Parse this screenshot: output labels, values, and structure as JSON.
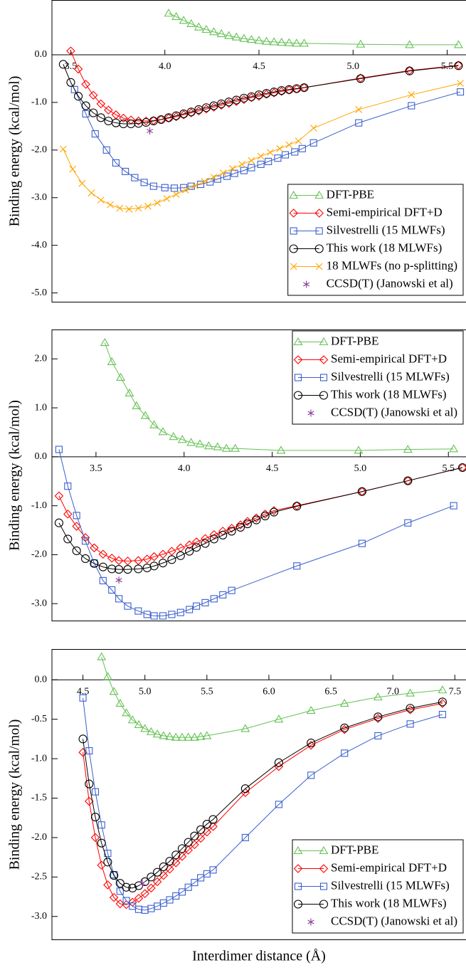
{
  "chart_data": [
    {
      "type": "line",
      "ylabel": "Binding energy (kcal/mol)",
      "xlim": [
        3.4,
        5.6
      ],
      "ylim": [
        -5.2,
        1.15
      ],
      "xticks": [
        3.5,
        {
          "value": 4,
          "label": "4.0"
        },
        4.5,
        {
          "value": 5,
          "label": "5.0"
        },
        5.5
      ],
      "yticks": [
        {
          "value": -5,
          "label": "-5.0"
        },
        {
          "value": -4,
          "label": "-4.0"
        },
        {
          "value": -3,
          "label": "-3.0"
        },
        {
          "value": -2,
          "label": "-2.0"
        },
        {
          "value": -1,
          "label": "-1.0"
        },
        {
          "value": 0,
          "label": "0.0"
        }
      ],
      "legend": "lower right",
      "series": [
        {
          "name": "DFT-PBE",
          "color": "#66c255",
          "marker": "triangle",
          "x": [
            4.02,
            4.06,
            4.1,
            4.14,
            4.18,
            4.22,
            4.26,
            4.3,
            4.34,
            4.38,
            4.42,
            4.46,
            4.5,
            4.54,
            4.58,
            4.62,
            4.66,
            4.7,
            4.74,
            5.04,
            5.3,
            5.56
          ],
          "values": [
            0.87,
            0.8,
            0.72,
            0.65,
            0.58,
            0.53,
            0.48,
            0.44,
            0.4,
            0.37,
            0.34,
            0.32,
            0.3,
            0.28,
            0.27,
            0.26,
            0.25,
            0.24,
            0.24,
            0.22,
            0.21,
            0.21
          ]
        },
        {
          "name": "Semi-empirical DFT+D",
          "color": "#ff0000",
          "marker": "diamond",
          "x": [
            3.5,
            3.54,
            3.58,
            3.62,
            3.66,
            3.7,
            3.74,
            3.78,
            3.82,
            3.86,
            3.9,
            3.94,
            3.98,
            4.02,
            4.06,
            4.1,
            4.14,
            4.18,
            4.22,
            4.26,
            4.3,
            4.34,
            4.38,
            4.42,
            4.46,
            4.5,
            4.54,
            4.58,
            4.62,
            4.66,
            4.7,
            4.74,
            5.04,
            5.3,
            5.56
          ],
          "values": [
            0.08,
            -0.3,
            -0.62,
            -0.85,
            -1.03,
            -1.16,
            -1.26,
            -1.33,
            -1.37,
            -1.39,
            -1.39,
            -1.38,
            -1.36,
            -1.33,
            -1.3,
            -1.26,
            -1.22,
            -1.18,
            -1.14,
            -1.1,
            -1.06,
            -1.02,
            -0.98,
            -0.94,
            -0.9,
            -0.87,
            -0.83,
            -0.8,
            -0.77,
            -0.74,
            -0.72,
            -0.69,
            -0.49,
            -0.33,
            -0.22
          ]
        },
        {
          "name": "Silvestrelli (15 MLWFs)",
          "color": "#3a5fcd",
          "marker": "square",
          "x": [
            3.52,
            3.58,
            3.63,
            3.69,
            3.74,
            3.79,
            3.84,
            3.89,
            3.94,
            4.0,
            4.05,
            4.1,
            4.14,
            4.19,
            4.24,
            4.28,
            4.33,
            4.37,
            4.42,
            4.46,
            4.51,
            4.55,
            4.6,
            4.64,
            4.69,
            4.73,
            4.79,
            5.03,
            5.31,
            5.57
          ],
          "values": [
            -0.73,
            -1.24,
            -1.66,
            -2.0,
            -2.27,
            -2.45,
            -2.58,
            -2.68,
            -2.76,
            -2.79,
            -2.8,
            -2.79,
            -2.76,
            -2.72,
            -2.67,
            -2.61,
            -2.55,
            -2.49,
            -2.43,
            -2.37,
            -2.3,
            -2.24,
            -2.17,
            -2.1,
            -2.04,
            -1.97,
            -1.85,
            -1.43,
            -1.07,
            -0.78
          ]
        },
        {
          "name": "This work (18 MLWFs)",
          "color": "#000000",
          "marker": "circle",
          "x": [
            3.46,
            3.5,
            3.54,
            3.58,
            3.62,
            3.66,
            3.7,
            3.74,
            3.78,
            3.82,
            3.86,
            3.9,
            3.94,
            3.98,
            4.02,
            4.06,
            4.1,
            4.14,
            4.18,
            4.22,
            4.26,
            4.3,
            4.34,
            4.38,
            4.42,
            4.46,
            4.5,
            4.54,
            4.58,
            4.62,
            4.66,
            4.7,
            4.74,
            5.04,
            5.3,
            5.56
          ],
          "values": [
            -0.2,
            -0.58,
            -0.87,
            -1.07,
            -1.22,
            -1.32,
            -1.39,
            -1.43,
            -1.45,
            -1.45,
            -1.44,
            -1.42,
            -1.39,
            -1.36,
            -1.32,
            -1.28,
            -1.24,
            -1.2,
            -1.15,
            -1.11,
            -1.07,
            -1.03,
            -0.99,
            -0.95,
            -0.91,
            -0.88,
            -0.84,
            -0.81,
            -0.78,
            -0.75,
            -0.73,
            -0.71,
            -0.69,
            -0.5,
            -0.34,
            -0.23
          ]
        },
        {
          "name": "18 MLWFs (no p-splitting)",
          "color": "#ffa500",
          "marker": "x",
          "x": [
            3.46,
            3.51,
            3.56,
            3.61,
            3.66,
            3.71,
            3.76,
            3.81,
            3.86,
            3.91,
            3.96,
            4.01,
            4.06,
            4.11,
            4.16,
            4.21,
            4.26,
            4.31,
            4.36,
            4.41,
            4.46,
            4.51,
            4.56,
            4.61,
            4.66,
            4.71,
            4.79,
            5.03,
            5.31,
            5.57
          ],
          "values": [
            -1.98,
            -2.4,
            -2.7,
            -2.9,
            -3.05,
            -3.15,
            -3.22,
            -3.24,
            -3.22,
            -3.18,
            -3.11,
            -3.02,
            -2.93,
            -2.84,
            -2.75,
            -2.66,
            -2.57,
            -2.48,
            -2.39,
            -2.3,
            -2.22,
            -2.13,
            -2.05,
            -1.97,
            -1.89,
            -1.81,
            -1.54,
            -1.15,
            -0.84,
            -0.6
          ]
        },
        {
          "name": "CCSD(T) (Janowski et al)",
          "color": "#8b3a9b",
          "marker": "asterisk",
          "line": false,
          "x": [
            3.92
          ],
          "values": [
            -1.6
          ]
        }
      ]
    },
    {
      "type": "line",
      "ylabel": "Binding energy (kcal/mol)",
      "xlim": [
        3.25,
        5.6
      ],
      "ylim": [
        -3.36,
        2.6
      ],
      "xticks": [
        3.5,
        {
          "value": 4,
          "label": "4.0"
        },
        4.5,
        {
          "value": 5,
          "label": "5.0"
        },
        5.5
      ],
      "yticks": [
        {
          "value": -3,
          "label": "-3.0"
        },
        {
          "value": -2,
          "label": "-2.0"
        },
        {
          "value": -1,
          "label": "-1.0"
        },
        {
          "value": 0,
          "label": "0.0"
        },
        {
          "value": 1,
          "label": "1.0"
        },
        {
          "value": 2,
          "label": "2.0"
        }
      ],
      "legend": "upper right",
      "series": [
        {
          "name": "DFT-PBE",
          "color": "#66c255",
          "marker": "triangle",
          "x": [
            3.55,
            3.59,
            3.64,
            3.69,
            3.73,
            3.78,
            3.83,
            3.88,
            3.94,
            3.99,
            4.04,
            4.09,
            4.14,
            4.19,
            4.24,
            4.29,
            4.55,
            4.99,
            5.27,
            5.53
          ],
          "values": [
            2.33,
            1.94,
            1.62,
            1.3,
            1.04,
            0.84,
            0.65,
            0.51,
            0.41,
            0.35,
            0.29,
            0.26,
            0.22,
            0.2,
            0.17,
            0.17,
            0.13,
            0.13,
            0.15,
            0.16
          ]
        },
        {
          "name": "Semi-empirical DFT+D",
          "color": "#ff0000",
          "marker": "diamond",
          "x": [
            3.29,
            3.34,
            3.39,
            3.44,
            3.49,
            3.54,
            3.59,
            3.63,
            3.68,
            3.74,
            3.79,
            3.83,
            3.88,
            3.93,
            3.98,
            4.03,
            4.07,
            4.12,
            4.17,
            4.22,
            4.27,
            4.32,
            4.36,
            4.41,
            4.46,
            4.51,
            4.64,
            5.01,
            5.27,
            5.58
          ],
          "values": [
            -0.8,
            -1.17,
            -1.42,
            -1.65,
            -1.86,
            -1.99,
            -2.07,
            -2.12,
            -2.13,
            -2.12,
            -2.09,
            -2.04,
            -1.99,
            -1.93,
            -1.86,
            -1.8,
            -1.74,
            -1.67,
            -1.59,
            -1.52,
            -1.46,
            -1.39,
            -1.32,
            -1.25,
            -1.17,
            -1.1,
            -1.0,
            -0.71,
            -0.49,
            -0.22
          ]
        },
        {
          "name": "Silvestrelli (15 MLWFs)",
          "color": "#3a5fcd",
          "marker": "square",
          "x": [
            3.29,
            3.34,
            3.39,
            3.44,
            3.49,
            3.54,
            3.59,
            3.63,
            3.68,
            3.74,
            3.79,
            3.83,
            3.88,
            3.93,
            3.98,
            4.03,
            4.07,
            4.12,
            4.17,
            4.22,
            4.27,
            4.64,
            5.01,
            5.27,
            5.53
          ],
          "values": [
            0.15,
            -0.6,
            -1.2,
            -1.72,
            -2.17,
            -2.53,
            -2.72,
            -2.9,
            -3.05,
            -3.15,
            -3.22,
            -3.25,
            -3.25,
            -3.22,
            -3.18,
            -3.12,
            -3.05,
            -2.98,
            -2.9,
            -2.82,
            -2.73,
            -2.23,
            -1.77,
            -1.35,
            -1.0
          ]
        },
        {
          "name": "This work (18 MLWFs)",
          "color": "#000000",
          "marker": "circle",
          "x": [
            3.29,
            3.34,
            3.39,
            3.44,
            3.49,
            3.54,
            3.59,
            3.63,
            3.68,
            3.74,
            3.79,
            3.83,
            3.88,
            3.93,
            3.98,
            4.03,
            4.07,
            4.12,
            4.17,
            4.22,
            4.27,
            4.32,
            4.36,
            4.41,
            4.46,
            4.51,
            4.64,
            5.01,
            5.27,
            5.58
          ],
          "values": [
            -1.35,
            -1.68,
            -1.92,
            -2.08,
            -2.18,
            -2.25,
            -2.29,
            -2.3,
            -2.3,
            -2.29,
            -2.27,
            -2.23,
            -2.17,
            -2.1,
            -2.02,
            -1.93,
            -1.85,
            -1.77,
            -1.68,
            -1.6,
            -1.52,
            -1.44,
            -1.37,
            -1.29,
            -1.21,
            -1.13,
            -1.01,
            -0.71,
            -0.49,
            -0.22
          ]
        },
        {
          "name": "CCSD(T) (Janowski et al)",
          "color": "#8b3a9b",
          "marker": "asterisk",
          "line": false,
          "x": [
            3.63
          ],
          "values": [
            -2.52
          ]
        }
      ]
    },
    {
      "type": "line",
      "ylabel": "Binding energy (kcal/mol)",
      "xlabel": "Interdimer distance (Å)",
      "xlim": [
        4.25,
        7.59
      ],
      "ylim": [
        -3.3,
        0.39
      ],
      "xticks": [
        4.5,
        {
          "value": 5,
          "label": "5.0"
        },
        5.5,
        {
          "value": 6,
          "label": "6.0"
        },
        6.5,
        {
          "value": 7,
          "label": "7.0"
        },
        7.5
      ],
      "yticks": [
        {
          "value": -3,
          "label": "-3.0"
        },
        -2.5,
        {
          "value": -2,
          "label": "-2.0"
        },
        -1.5,
        {
          "value": -1,
          "label": "-1.0"
        },
        -0.5,
        {
          "value": 0,
          "label": "0.0"
        }
      ],
      "legend": "lower right",
      "series": [
        {
          "name": "DFT-PBE",
          "color": "#66c255",
          "marker": "triangle",
          "x": [
            4.65,
            4.7,
            4.75,
            4.8,
            4.85,
            4.9,
            4.95,
            5.0,
            5.05,
            5.1,
            5.15,
            5.2,
            5.25,
            5.3,
            5.35,
            5.4,
            5.45,
            5.5,
            5.81,
            6.08,
            6.34,
            6.61,
            6.88,
            7.14,
            7.4
          ],
          "values": [
            0.29,
            0.04,
            -0.15,
            -0.3,
            -0.42,
            -0.51,
            -0.57,
            -0.62,
            -0.66,
            -0.69,
            -0.71,
            -0.72,
            -0.73,
            -0.73,
            -0.73,
            -0.73,
            -0.72,
            -0.71,
            -0.62,
            -0.5,
            -0.39,
            -0.3,
            -0.22,
            -0.17,
            -0.13
          ]
        },
        {
          "name": "Semi-empirical DFT+D",
          "color": "#ff0000",
          "marker": "diamond",
          "x": [
            4.5,
            4.55,
            4.6,
            4.65,
            4.7,
            4.75,
            4.8,
            4.85,
            4.9,
            4.95,
            5.0,
            5.05,
            5.1,
            5.15,
            5.2,
            5.25,
            5.3,
            5.35,
            5.4,
            5.45,
            5.5,
            5.55,
            5.81,
            6.08,
            6.34,
            6.61,
            6.88,
            7.14,
            7.4
          ],
          "values": [
            -0.92,
            -1.54,
            -2.0,
            -2.35,
            -2.6,
            -2.76,
            -2.84,
            -2.85,
            -2.82,
            -2.77,
            -2.71,
            -2.64,
            -2.56,
            -2.48,
            -2.4,
            -2.32,
            -2.24,
            -2.16,
            -2.09,
            -2.01,
            -1.93,
            -1.86,
            -1.43,
            -1.1,
            -0.83,
            -0.63,
            -0.49,
            -0.38,
            -0.3
          ]
        },
        {
          "name": "Silvestrelli (15 MLWFs)",
          "color": "#3a5fcd",
          "marker": "square",
          "x": [
            4.5,
            4.55,
            4.6,
            4.65,
            4.7,
            4.75,
            4.8,
            4.85,
            4.9,
            4.95,
            5.0,
            5.05,
            5.1,
            5.15,
            5.2,
            5.25,
            5.3,
            5.35,
            5.4,
            5.45,
            5.5,
            5.55,
            5.81,
            6.08,
            6.34,
            6.61,
            6.88,
            7.14,
            7.4
          ],
          "values": [
            -0.23,
            -0.9,
            -1.42,
            -1.84,
            -2.2,
            -2.47,
            -2.68,
            -2.8,
            -2.87,
            -2.91,
            -2.92,
            -2.9,
            -2.87,
            -2.83,
            -2.79,
            -2.74,
            -2.69,
            -2.63,
            -2.57,
            -2.51,
            -2.46,
            -2.41,
            -2.0,
            -1.58,
            -1.21,
            -0.93,
            -0.71,
            -0.56,
            -0.44
          ]
        },
        {
          "name": "This work (18 MLWFs)",
          "color": "#000000",
          "marker": "circle",
          "x": [
            4.5,
            4.55,
            4.6,
            4.65,
            4.7,
            4.75,
            4.8,
            4.85,
            4.9,
            4.95,
            5.0,
            5.05,
            5.1,
            5.15,
            5.2,
            5.25,
            5.3,
            5.35,
            5.4,
            5.45,
            5.5,
            5.55,
            5.81,
            6.08,
            6.34,
            6.61,
            6.88,
            7.14,
            7.4
          ],
          "values": [
            -0.75,
            -1.32,
            -1.74,
            -2.07,
            -2.31,
            -2.48,
            -2.58,
            -2.63,
            -2.64,
            -2.61,
            -2.56,
            -2.5,
            -2.44,
            -2.37,
            -2.3,
            -2.22,
            -2.14,
            -2.06,
            -1.98,
            -1.9,
            -1.83,
            -1.77,
            -1.38,
            -1.05,
            -0.8,
            -0.61,
            -0.47,
            -0.36,
            -0.28
          ]
        },
        {
          "name": "CCSD(T) (Janowski et al)",
          "color": "#8b3a9b",
          "marker": "asterisk",
          "line": false,
          "x": [
            4.98
          ],
          "values": [
            -2.58
          ]
        }
      ]
    }
  ]
}
